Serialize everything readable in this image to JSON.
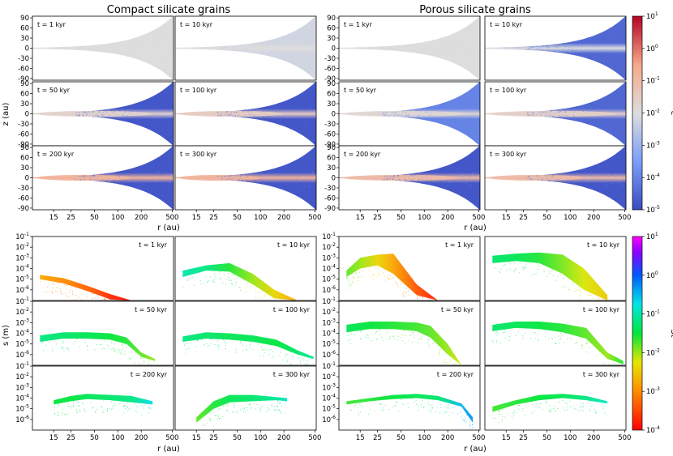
{
  "figure": {
    "titles": [
      "Compact silicate grains",
      "Porous silicate grains"
    ]
  },
  "chart_data": [
    {
      "type": "scatter",
      "name": "dust-to-gas-ratio",
      "title": "",
      "xlabel": "r (au)",
      "ylabel": "z (au)",
      "xscale": "log",
      "xlim": [
        8,
        520
      ],
      "ylim": [
        -95,
        95
      ],
      "x_ticks": [
        15,
        25,
        50,
        100,
        200,
        500
      ],
      "y_ticks": [
        90,
        60,
        30,
        0,
        -30,
        -60,
        -90
      ],
      "colorbar": {
        "label": "ε",
        "scale": "log",
        "min": -5,
        "max": 1,
        "ticks": [
          -5,
          -4,
          -3,
          -2,
          -1,
          0,
          1
        ],
        "colormap": "coolwarm"
      },
      "columns": [
        "Compact silicate grains",
        "Compact silicate grains",
        "Porous silicate grains",
        "Porous silicate grains"
      ],
      "panels": [
        {
          "time": "t = 1 kyr",
          "column": 0,
          "row": 0,
          "midplane_log_eps": -2.0,
          "envelope_log_eps": -2.0,
          "core_extent_au": 0
        },
        {
          "time": "t = 10 kyr",
          "column": 1,
          "row": 0,
          "midplane_log_eps": -2.0,
          "envelope_log_eps": -2.2,
          "core_extent_au": 0
        },
        {
          "time": "t = 1 kyr",
          "column": 2,
          "row": 0,
          "midplane_log_eps": -2.0,
          "envelope_log_eps": -2.0,
          "core_extent_au": 0
        },
        {
          "time": "t = 10 kyr",
          "column": 3,
          "row": 0,
          "midplane_log_eps": -2.0,
          "envelope_log_eps": -4.5,
          "core_extent_au": 0
        },
        {
          "time": "t = 50 kyr",
          "column": 0,
          "row": 1,
          "midplane_log_eps": -1.7,
          "envelope_log_eps": -4.8,
          "core_extent_au": 280
        },
        {
          "time": "t = 100 kyr",
          "column": 1,
          "row": 1,
          "midplane_log_eps": -1.5,
          "envelope_log_eps": -4.8,
          "core_extent_au": 200
        },
        {
          "time": "t = 50 kyr",
          "column": 2,
          "row": 1,
          "midplane_log_eps": -1.8,
          "envelope_log_eps": -4.0,
          "core_extent_au": 350
        },
        {
          "time": "t = 100 kyr",
          "column": 3,
          "row": 1,
          "midplane_log_eps": -1.6,
          "envelope_log_eps": -4.5,
          "core_extent_au": 400
        },
        {
          "time": "t = 200 kyr",
          "column": 0,
          "row": 2,
          "midplane_log_eps": -0.8,
          "envelope_log_eps": -4.8,
          "core_extent_au": 150
        },
        {
          "time": "t = 300 kyr",
          "column": 1,
          "row": 2,
          "midplane_log_eps": -0.8,
          "envelope_log_eps": -4.8,
          "core_extent_au": 100
        },
        {
          "time": "t = 200 kyr",
          "column": 2,
          "row": 2,
          "midplane_log_eps": -1.0,
          "envelope_log_eps": -4.8,
          "core_extent_au": 280
        },
        {
          "time": "t = 300 kyr",
          "column": 3,
          "row": 2,
          "midplane_log_eps": -1.0,
          "envelope_log_eps": -4.8,
          "core_extent_au": 150
        }
      ]
    },
    {
      "type": "scatter",
      "name": "grain-size",
      "title": "",
      "xlabel": "r (au)",
      "ylabel": "s (m)",
      "xscale": "log",
      "yscale": "log",
      "xlim": [
        8,
        520
      ],
      "ylim": [
        -7,
        -1
      ],
      "x_ticks": [
        15,
        25,
        50,
        100,
        200,
        500
      ],
      "y_ticks": [
        -1,
        -2,
        -3,
        -4,
        -5,
        -6
      ],
      "colorbar": {
        "label": "St",
        "scale": "log",
        "min": -4,
        "max": 1,
        "ticks": [
          -4,
          -3,
          -2,
          -1,
          0,
          1
        ],
        "colormap": "gist_rainbow_r"
      },
      "panels": [
        {
          "time": "t = 1 kyr",
          "column": 0,
          "row": 0,
          "upper_r": [
            10,
            20,
            40,
            80,
            150
          ],
          "upper_log_s": [
            -4.6,
            -4.9,
            -5.6,
            -6.4,
            -7.0
          ],
          "lower_log_s": [
            -5.0,
            -5.4,
            -6.1,
            -6.9,
            -7.0
          ],
          "log_st": [
            -2.8,
            -3.0,
            -3.3,
            -3.7,
            -3.9
          ]
        },
        {
          "time": "t = 10 kyr",
          "column": 1,
          "row": 0,
          "upper_r": [
            10,
            20,
            40,
            80,
            150,
            300
          ],
          "upper_log_s": [
            -4.2,
            -3.7,
            -3.5,
            -4.5,
            -6.0,
            -7.0
          ],
          "lower_log_s": [
            -4.8,
            -4.2,
            -4.3,
            -5.5,
            -6.8,
            -7.0
          ],
          "log_st": [
            -1.0,
            -1.2,
            -1.6,
            -2.0,
            -2.4,
            -2.8
          ]
        },
        {
          "time": "t = 1 kyr",
          "column": 2,
          "row": 0,
          "upper_r": [
            10,
            15,
            25,
            40,
            80,
            150
          ],
          "upper_log_s": [
            -4.2,
            -3.0,
            -2.7,
            -2.6,
            -5.5,
            -7.0
          ],
          "lower_log_s": [
            -4.8,
            -4.0,
            -3.7,
            -4.5,
            -6.5,
            -7.0
          ],
          "log_st": [
            -1.8,
            -2.0,
            -2.4,
            -2.8,
            -3.4,
            -3.8
          ]
        },
        {
          "time": "t = 10 kyr",
          "column": 3,
          "row": 0,
          "upper_r": [
            10,
            20,
            40,
            80,
            150,
            300
          ],
          "upper_log_s": [
            -2.8,
            -2.6,
            -2.5,
            -2.7,
            -4.0,
            -6.5
          ],
          "lower_log_s": [
            -3.5,
            -3.3,
            -3.5,
            -4.5,
            -6.0,
            -7.0
          ],
          "log_st": [
            -1.3,
            -1.4,
            -1.6,
            -1.9,
            -2.2,
            -2.5
          ]
        },
        {
          "time": "t = 50 kyr",
          "column": 0,
          "row": 1,
          "upper_r": [
            10,
            20,
            40,
            80,
            130,
            200,
            300
          ],
          "upper_log_s": [
            -4.2,
            -3.9,
            -3.9,
            -4.0,
            -4.4,
            -5.8,
            -6.4
          ],
          "lower_log_s": [
            -4.8,
            -4.5,
            -4.5,
            -4.6,
            -5.0,
            -6.2,
            -6.6
          ],
          "log_st": [
            -1.2,
            -1.3,
            -1.4,
            -1.5,
            -1.6,
            -1.8,
            -2.0
          ]
        },
        {
          "time": "t = 100 kyr",
          "column": 1,
          "row": 1,
          "upper_r": [
            10,
            20,
            40,
            80,
            160,
            300,
            480
          ],
          "upper_log_s": [
            -4.3,
            -3.9,
            -4.0,
            -4.2,
            -4.6,
            -5.6,
            -6.2
          ],
          "lower_log_s": [
            -4.8,
            -4.5,
            -4.6,
            -4.8,
            -5.2,
            -6.0,
            -6.4
          ],
          "log_st": [
            -1.2,
            -1.3,
            -1.4,
            -1.4,
            -1.5,
            -1.3,
            -1.1
          ]
        },
        {
          "time": "t = 50 kyr",
          "column": 2,
          "row": 1,
          "upper_r": [
            10,
            20,
            40,
            80,
            120,
            200,
            300
          ],
          "upper_log_s": [
            -3.2,
            -2.9,
            -2.9,
            -3.0,
            -3.3,
            -5.0,
            -7.0
          ],
          "lower_log_s": [
            -3.9,
            -3.6,
            -3.6,
            -3.8,
            -4.4,
            -6.0,
            -7.0
          ],
          "log_st": [
            -1.4,
            -1.5,
            -1.6,
            -1.7,
            -1.8,
            -2.0,
            -2.2
          ]
        },
        {
          "time": "t = 100 kyr",
          "column": 3,
          "row": 1,
          "upper_r": [
            10,
            20,
            40,
            80,
            160,
            300,
            480
          ],
          "upper_log_s": [
            -3.2,
            -2.9,
            -2.9,
            -3.1,
            -3.5,
            -5.8,
            -6.6
          ],
          "lower_log_s": [
            -3.8,
            -3.5,
            -3.6,
            -3.9,
            -4.5,
            -6.4,
            -6.9
          ],
          "log_st": [
            -1.3,
            -1.4,
            -1.5,
            -1.6,
            -1.8,
            -2.0,
            -1.6
          ]
        },
        {
          "time": "t = 200 kyr",
          "column": 0,
          "row": 2,
          "upper_r": [
            15,
            25,
            40,
            80,
            150,
            280
          ],
          "upper_log_s": [
            -4.2,
            -3.8,
            -3.6,
            -3.7,
            -3.8,
            -4.3
          ],
          "lower_log_s": [
            -4.6,
            -4.3,
            -4.1,
            -4.2,
            -4.4,
            -4.6
          ],
          "log_st": [
            -1.5,
            -1.5,
            -1.4,
            -1.3,
            -1.2,
            -0.7
          ]
        },
        {
          "time": "t = 300 kyr",
          "column": 1,
          "row": 2,
          "upper_r": [
            15,
            25,
            40,
            80,
            160,
            220
          ],
          "upper_log_s": [
            -5.8,
            -4.3,
            -3.7,
            -3.7,
            -3.9,
            -4.0
          ],
          "lower_log_s": [
            -6.3,
            -5.0,
            -4.4,
            -4.3,
            -4.2,
            -4.3
          ],
          "log_st": [
            -1.8,
            -1.6,
            -1.4,
            -1.3,
            -1.1,
            -0.9
          ]
        },
        {
          "time": "t = 200 kyr",
          "column": 2,
          "row": 2,
          "upper_r": [
            10,
            20,
            40,
            80,
            150,
            300,
            420
          ],
          "upper_log_s": [
            -4.3,
            -4.0,
            -3.7,
            -3.6,
            -3.8,
            -4.5,
            -5.8
          ],
          "lower_log_s": [
            -4.6,
            -4.3,
            -4.1,
            -4.0,
            -4.2,
            -4.8,
            -6.3
          ],
          "log_st": [
            -1.7,
            -1.6,
            -1.5,
            -1.4,
            -1.3,
            -0.5,
            -0.3
          ]
        },
        {
          "time": "t = 300 kyr",
          "column": 3,
          "row": 2,
          "upper_r": [
            10,
            20,
            40,
            80,
            160,
            300
          ],
          "upper_log_s": [
            -4.8,
            -4.2,
            -3.7,
            -3.6,
            -3.8,
            -4.3
          ],
          "lower_log_s": [
            -5.3,
            -4.6,
            -4.2,
            -4.0,
            -4.2,
            -4.5
          ],
          "log_st": [
            -1.7,
            -1.6,
            -1.5,
            -1.4,
            -1.2,
            -0.9
          ]
        }
      ]
    }
  ]
}
